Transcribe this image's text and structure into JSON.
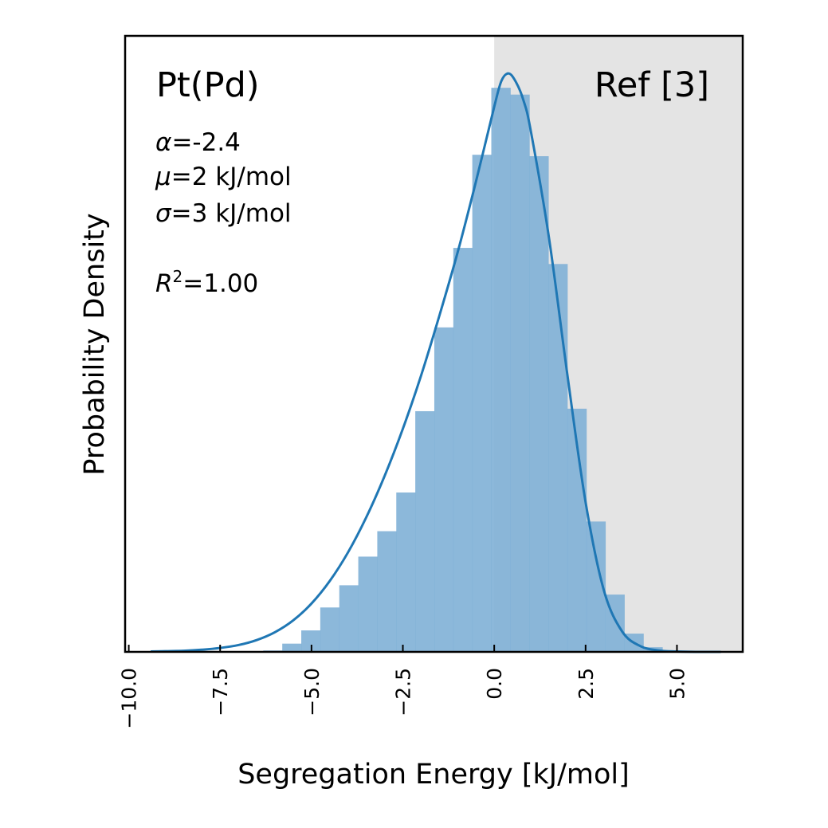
{
  "chart_data": {
    "type": "bar",
    "title": "",
    "xlabel": "Segregation Energy [kJ/mol]",
    "ylabel": "Probability Density",
    "xlim": [
      -10.1,
      6.8
    ],
    "ylim": [
      0,
      0.172
    ],
    "xticks": [
      -10.0,
      -7.5,
      -5.0,
      -2.5,
      0.0,
      2.5,
      5.0
    ],
    "xtick_labels": [
      "−10.0",
      "−7.5",
      "−5.0",
      "−2.5",
      "0.0",
      "2.5",
      "5.0"
    ],
    "tick_label_rotation": 90,
    "y_ticks_shown": false,
    "grid": false,
    "shaded_region": {
      "x_from": 0.0,
      "x_to": 6.8,
      "color": "#e4e4e4"
    },
    "histogram": {
      "bin_edges": [
        -6.32,
        -5.8,
        -5.28,
        -4.76,
        -4.24,
        -3.72,
        -3.2,
        -2.68,
        -2.16,
        -1.64,
        -1.12,
        -0.6,
        -0.08,
        0.44,
        0.96,
        1.48,
        2.0,
        2.52,
        3.04,
        3.56,
        4.08,
        4.6
      ],
      "densities": [
        0.0004,
        0.0023,
        0.006,
        0.0124,
        0.0186,
        0.0266,
        0.0337,
        0.0445,
        0.0672,
        0.0906,
        0.1128,
        0.1388,
        0.1575,
        0.1556,
        0.1384,
        0.1083,
        0.0679,
        0.0364,
        0.016,
        0.0051,
        0.0013
      ],
      "color": "#7fb0d6"
    },
    "series": [
      {
        "type": "line",
        "color": "#1f77b4",
        "x": [
          -9.4,
          -9.0,
          -8.5,
          -8.0,
          -7.5,
          -7.0,
          -6.5,
          -6.0,
          -5.5,
          -5.0,
          -4.5,
          -4.0,
          -3.5,
          -3.0,
          -2.5,
          -2.0,
          -1.5,
          -1.0,
          -0.5,
          0.0,
          0.2,
          0.4,
          0.6,
          0.8,
          1.0,
          1.5,
          2.0,
          2.5,
          3.0,
          3.5,
          4.0,
          4.5,
          5.0,
          5.5,
          6.2
        ],
        "y": [
          0.0001,
          0.0002,
          0.0003,
          0.0006,
          0.0011,
          0.0019,
          0.0033,
          0.0055,
          0.0088,
          0.0135,
          0.0198,
          0.0278,
          0.0376,
          0.0491,
          0.0623,
          0.0772,
          0.0939,
          0.1116,
          0.1313,
          0.1522,
          0.1595,
          0.1615,
          0.159,
          0.154,
          0.1455,
          0.1155,
          0.0775,
          0.0418,
          0.0172,
          0.0057,
          0.0016,
          0.0004,
          0.0001,
          0.0,
          0.0
        ]
      }
    ]
  },
  "annotations": {
    "system": "Pt(Pd)",
    "reference": "Ref [3]",
    "alpha": {
      "symbol": "α",
      "text": "=-2.4"
    },
    "mu": {
      "symbol": "μ",
      "text": "=2 kJ/mol"
    },
    "sigma": {
      "symbol": "σ",
      "text": "=3 kJ/mol"
    },
    "r2": {
      "symbol": "R",
      "superscript": "2",
      "text": "=1.00"
    }
  }
}
